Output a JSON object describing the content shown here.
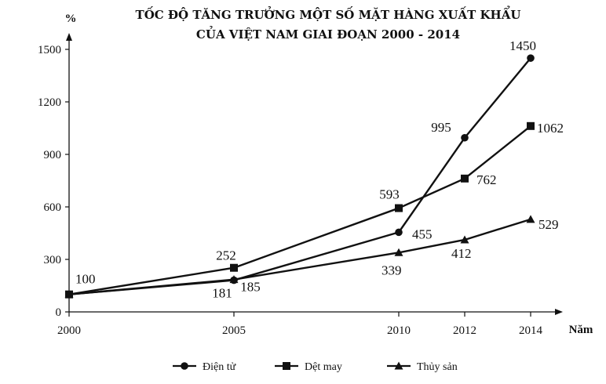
{
  "chart_data": {
    "type": "line",
    "title_line1": "TỐC ĐỘ TĂNG TRƯỞNG MỘT SỐ MẶT HÀNG XUẤT KHẨU",
    "title_line2": "CỦA VIỆT NAM GIAI ĐOẠN 2000 - 2014",
    "ylabel": "%",
    "xlabel": "Năm",
    "ylim": [
      0,
      1500
    ],
    "yticks": [
      0,
      300,
      600,
      900,
      1200,
      1500
    ],
    "x": [
      2000,
      2005,
      2010,
      2012,
      2014
    ],
    "x_tick_labels": [
      "2000",
      "2005",
      "2010",
      "2012",
      "2014"
    ],
    "grid": false,
    "legend_position": "bottom",
    "series": [
      {
        "name": "Điện tử",
        "marker": "circle",
        "values": [
          100,
          181,
          455,
          995,
          1450
        ],
        "labels": [
          "100",
          "181",
          "455",
          "995",
          "1450"
        ]
      },
      {
        "name": "Dệt may",
        "marker": "square",
        "values": [
          100,
          252,
          593,
          762,
          1062
        ],
        "labels": [
          "",
          "252",
          "593",
          "762",
          "1062"
        ]
      },
      {
        "name": "Thủy sản",
        "marker": "triangle",
        "values": [
          100,
          185,
          339,
          412,
          529
        ],
        "labels": [
          "",
          "185",
          "339",
          "412",
          "529"
        ]
      }
    ],
    "line_color": "#111111"
  }
}
